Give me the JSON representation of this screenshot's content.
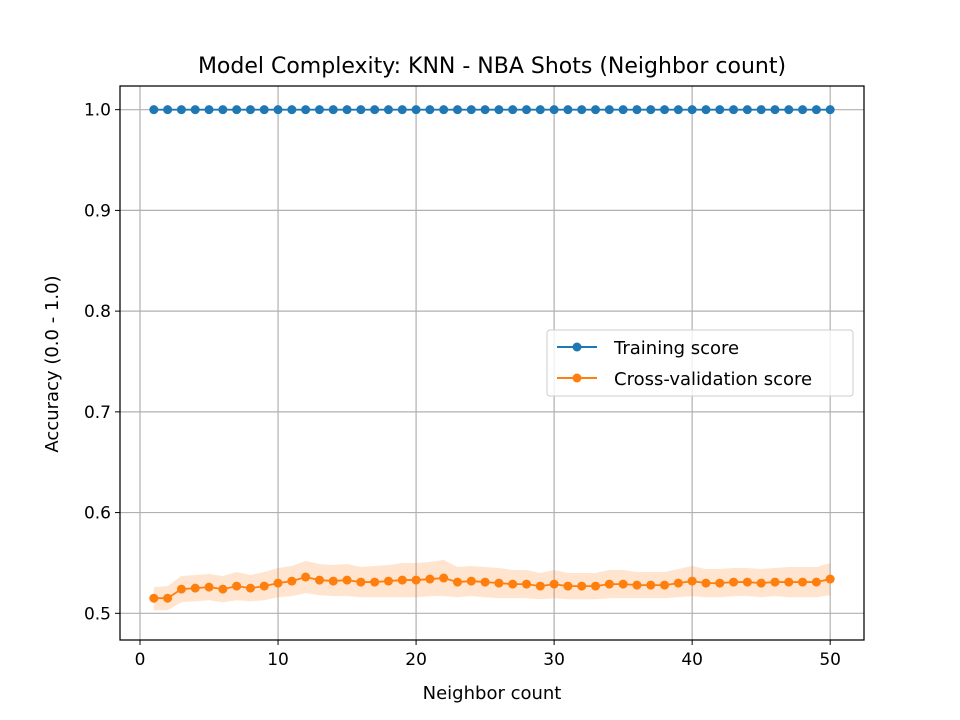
{
  "chart_data": {
    "type": "line",
    "title": "Model Complexity: KNN - NBA Shots (Neighbor count)",
    "xlabel": "Neighbor count",
    "ylabel": "Accuracy (0.0 - 1.0)",
    "xlim": [
      -1.45,
      52.45
    ],
    "ylim": [
      0.4735,
      1.0235
    ],
    "xticks": [
      0,
      10,
      20,
      30,
      40,
      50
    ],
    "xtick_labels": [
      "0",
      "10",
      "20",
      "30",
      "40",
      "50"
    ],
    "yticks": [
      0.5,
      0.6,
      0.7,
      0.8,
      0.9,
      1.0
    ],
    "ytick_labels": [
      "0.5",
      "0.6",
      "0.7",
      "0.8",
      "0.9",
      "1.0"
    ],
    "grid": true,
    "legend_position": "center-right",
    "x": [
      1,
      2,
      3,
      4,
      5,
      6,
      7,
      8,
      9,
      10,
      11,
      12,
      13,
      14,
      15,
      16,
      17,
      18,
      19,
      20,
      21,
      22,
      23,
      24,
      25,
      26,
      27,
      28,
      29,
      30,
      31,
      32,
      33,
      34,
      35,
      36,
      37,
      38,
      39,
      40,
      41,
      42,
      43,
      44,
      45,
      46,
      47,
      48,
      49,
      50
    ],
    "series": [
      {
        "name": "Training score",
        "color": "#1f77b4",
        "values": [
          1.0,
          1.0,
          1.0,
          1.0,
          1.0,
          1.0,
          1.0,
          1.0,
          1.0,
          1.0,
          1.0,
          1.0,
          1.0,
          1.0,
          1.0,
          1.0,
          1.0,
          1.0,
          1.0,
          1.0,
          1.0,
          1.0,
          1.0,
          1.0,
          1.0,
          1.0,
          1.0,
          1.0,
          1.0,
          1.0,
          1.0,
          1.0,
          1.0,
          1.0,
          1.0,
          1.0,
          1.0,
          1.0,
          1.0,
          1.0,
          1.0,
          1.0,
          1.0,
          1.0,
          1.0,
          1.0,
          1.0,
          1.0,
          1.0,
          1.0
        ]
      },
      {
        "name": "Cross-validation score",
        "color": "#ff7f0e",
        "band_color": "#ff7f0e",
        "values": [
          0.515,
          0.515,
          0.524,
          0.525,
          0.526,
          0.524,
          0.527,
          0.525,
          0.527,
          0.53,
          0.532,
          0.536,
          0.533,
          0.532,
          0.533,
          0.531,
          0.531,
          0.532,
          0.533,
          0.533,
          0.534,
          0.535,
          0.531,
          0.532,
          0.531,
          0.53,
          0.529,
          0.529,
          0.527,
          0.529,
          0.527,
          0.527,
          0.527,
          0.529,
          0.529,
          0.528,
          0.528,
          0.528,
          0.53,
          0.532,
          0.53,
          0.53,
          0.531,
          0.531,
          0.53,
          0.531,
          0.531,
          0.531,
          0.531,
          0.534
        ],
        "band_lower": [
          0.503,
          0.503,
          0.511,
          0.512,
          0.513,
          0.511,
          0.513,
          0.512,
          0.513,
          0.516,
          0.517,
          0.52,
          0.518,
          0.517,
          0.517,
          0.516,
          0.516,
          0.516,
          0.516,
          0.516,
          0.517,
          0.517,
          0.516,
          0.517,
          0.516,
          0.515,
          0.515,
          0.515,
          0.514,
          0.515,
          0.514,
          0.514,
          0.514,
          0.515,
          0.515,
          0.515,
          0.515,
          0.515,
          0.516,
          0.517,
          0.516,
          0.516,
          0.517,
          0.517,
          0.516,
          0.517,
          0.516,
          0.516,
          0.516,
          0.518
        ],
        "band_upper": [
          0.526,
          0.527,
          0.537,
          0.538,
          0.539,
          0.537,
          0.541,
          0.538,
          0.541,
          0.545,
          0.547,
          0.552,
          0.549,
          0.548,
          0.549,
          0.546,
          0.547,
          0.548,
          0.55,
          0.55,
          0.551,
          0.553,
          0.546,
          0.547,
          0.546,
          0.545,
          0.543,
          0.543,
          0.54,
          0.543,
          0.54,
          0.54,
          0.54,
          0.543,
          0.543,
          0.541,
          0.541,
          0.541,
          0.544,
          0.547,
          0.544,
          0.544,
          0.545,
          0.545,
          0.544,
          0.545,
          0.546,
          0.546,
          0.546,
          0.55
        ]
      }
    ]
  }
}
